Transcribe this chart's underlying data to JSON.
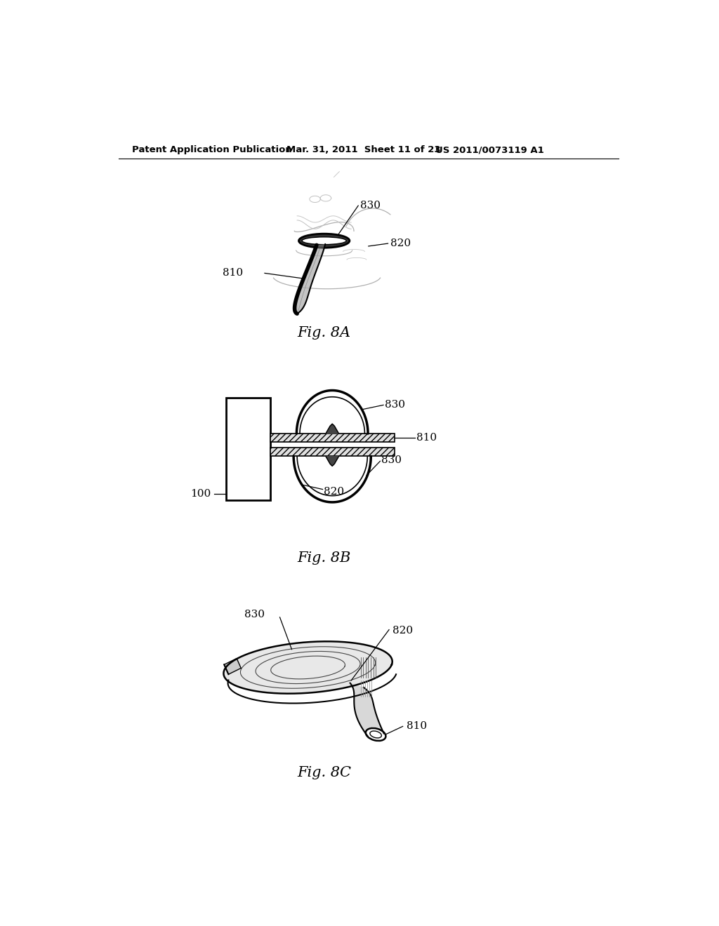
{
  "bg_color": "#ffffff",
  "header_left": "Patent Application Publication",
  "header_mid": "Mar. 31, 2011  Sheet 11 of 23",
  "header_right": "US 2011/0073119 A1",
  "fig8a_label": "Fig. 8A",
  "fig8b_label": "Fig. 8B",
  "fig8c_label": "Fig. 8C",
  "t830": "830",
  "t820": "820",
  "t810": "810",
  "t100": "100"
}
